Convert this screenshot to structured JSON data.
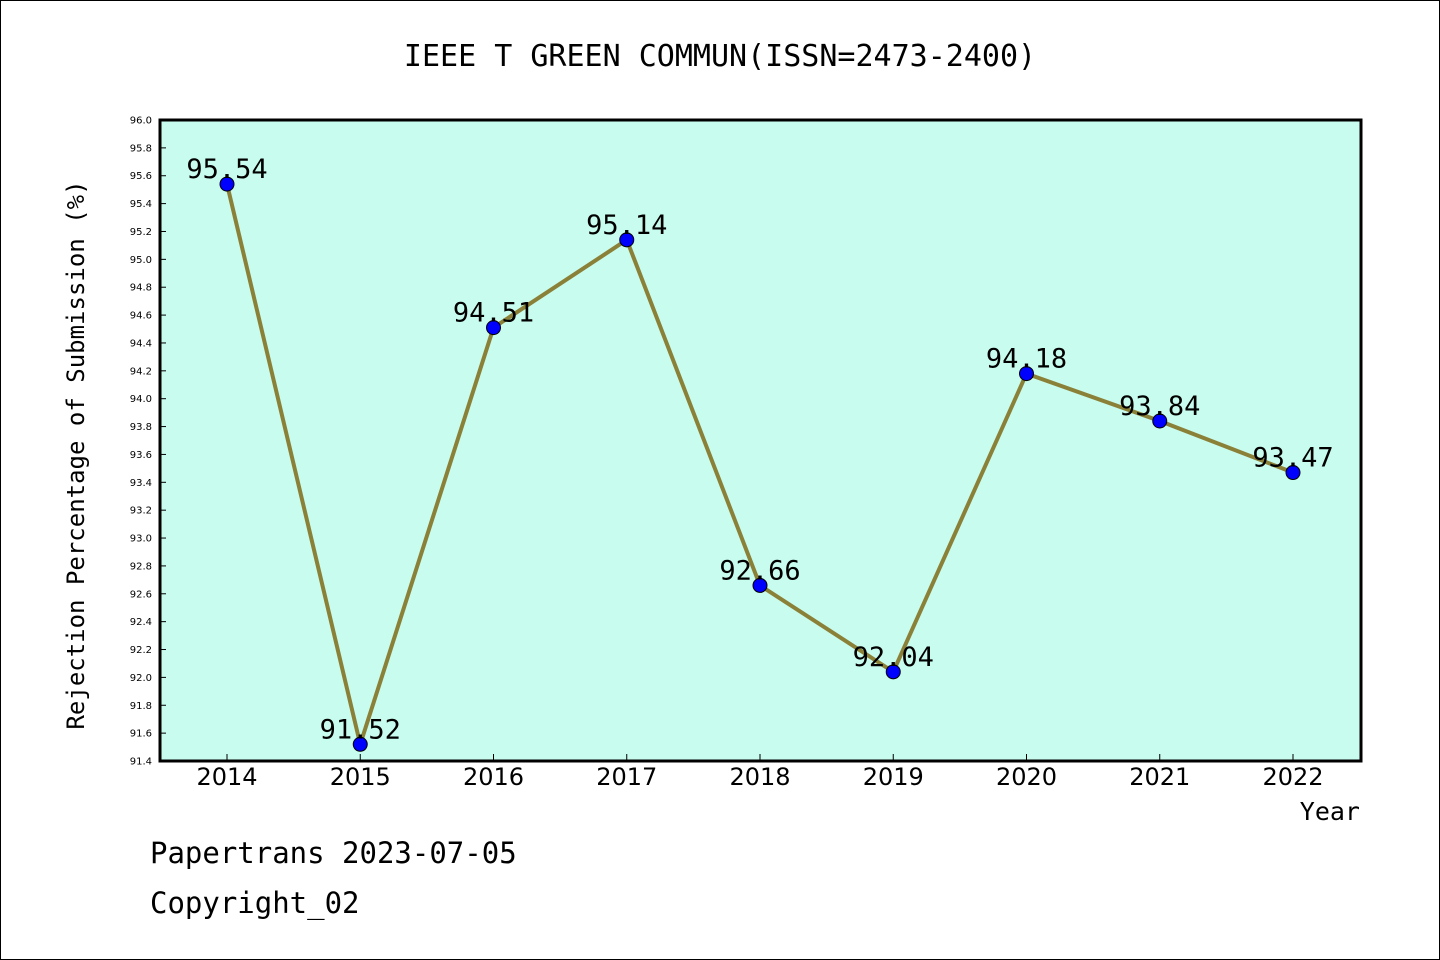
{
  "chart_data": {
    "type": "line",
    "title": "IEEE T GREEN COMMUN(ISSN=2473-2400)",
    "xlabel": "Year",
    "ylabel": "Rejection Percentage of Submission (%)",
    "x": [
      "2014",
      "2015",
      "2016",
      "2017",
      "2018",
      "2019",
      "2020",
      "2021",
      "2022"
    ],
    "values": [
      95.54,
      91.52,
      94.51,
      95.14,
      92.66,
      92.04,
      94.18,
      93.84,
      93.47
    ],
    "data_labels": [
      "95.54",
      "91.52",
      "94.51",
      "95.14",
      "92.66",
      "92.04",
      "94.18",
      "93.84",
      "93.47"
    ],
    "ylim": [
      91.4,
      96.0
    ],
    "yticks": [
      "91.4",
      "91.6",
      "91.8",
      "92.0",
      "92.2",
      "92.4",
      "92.6",
      "92.8",
      "93.0",
      "93.2",
      "93.4",
      "93.6",
      "93.8",
      "94.0",
      "94.2",
      "94.4",
      "94.6",
      "94.8",
      "95.0",
      "95.2",
      "95.4",
      "95.6",
      "95.8",
      "96.0"
    ],
    "grid": false,
    "colors": {
      "plot_background": "#c8fcee",
      "line": "#8b8038",
      "marker": "#0000ff"
    }
  },
  "footer": {
    "line1": "Papertrans 2023-07-05",
    "line2": "Copyright_02"
  }
}
